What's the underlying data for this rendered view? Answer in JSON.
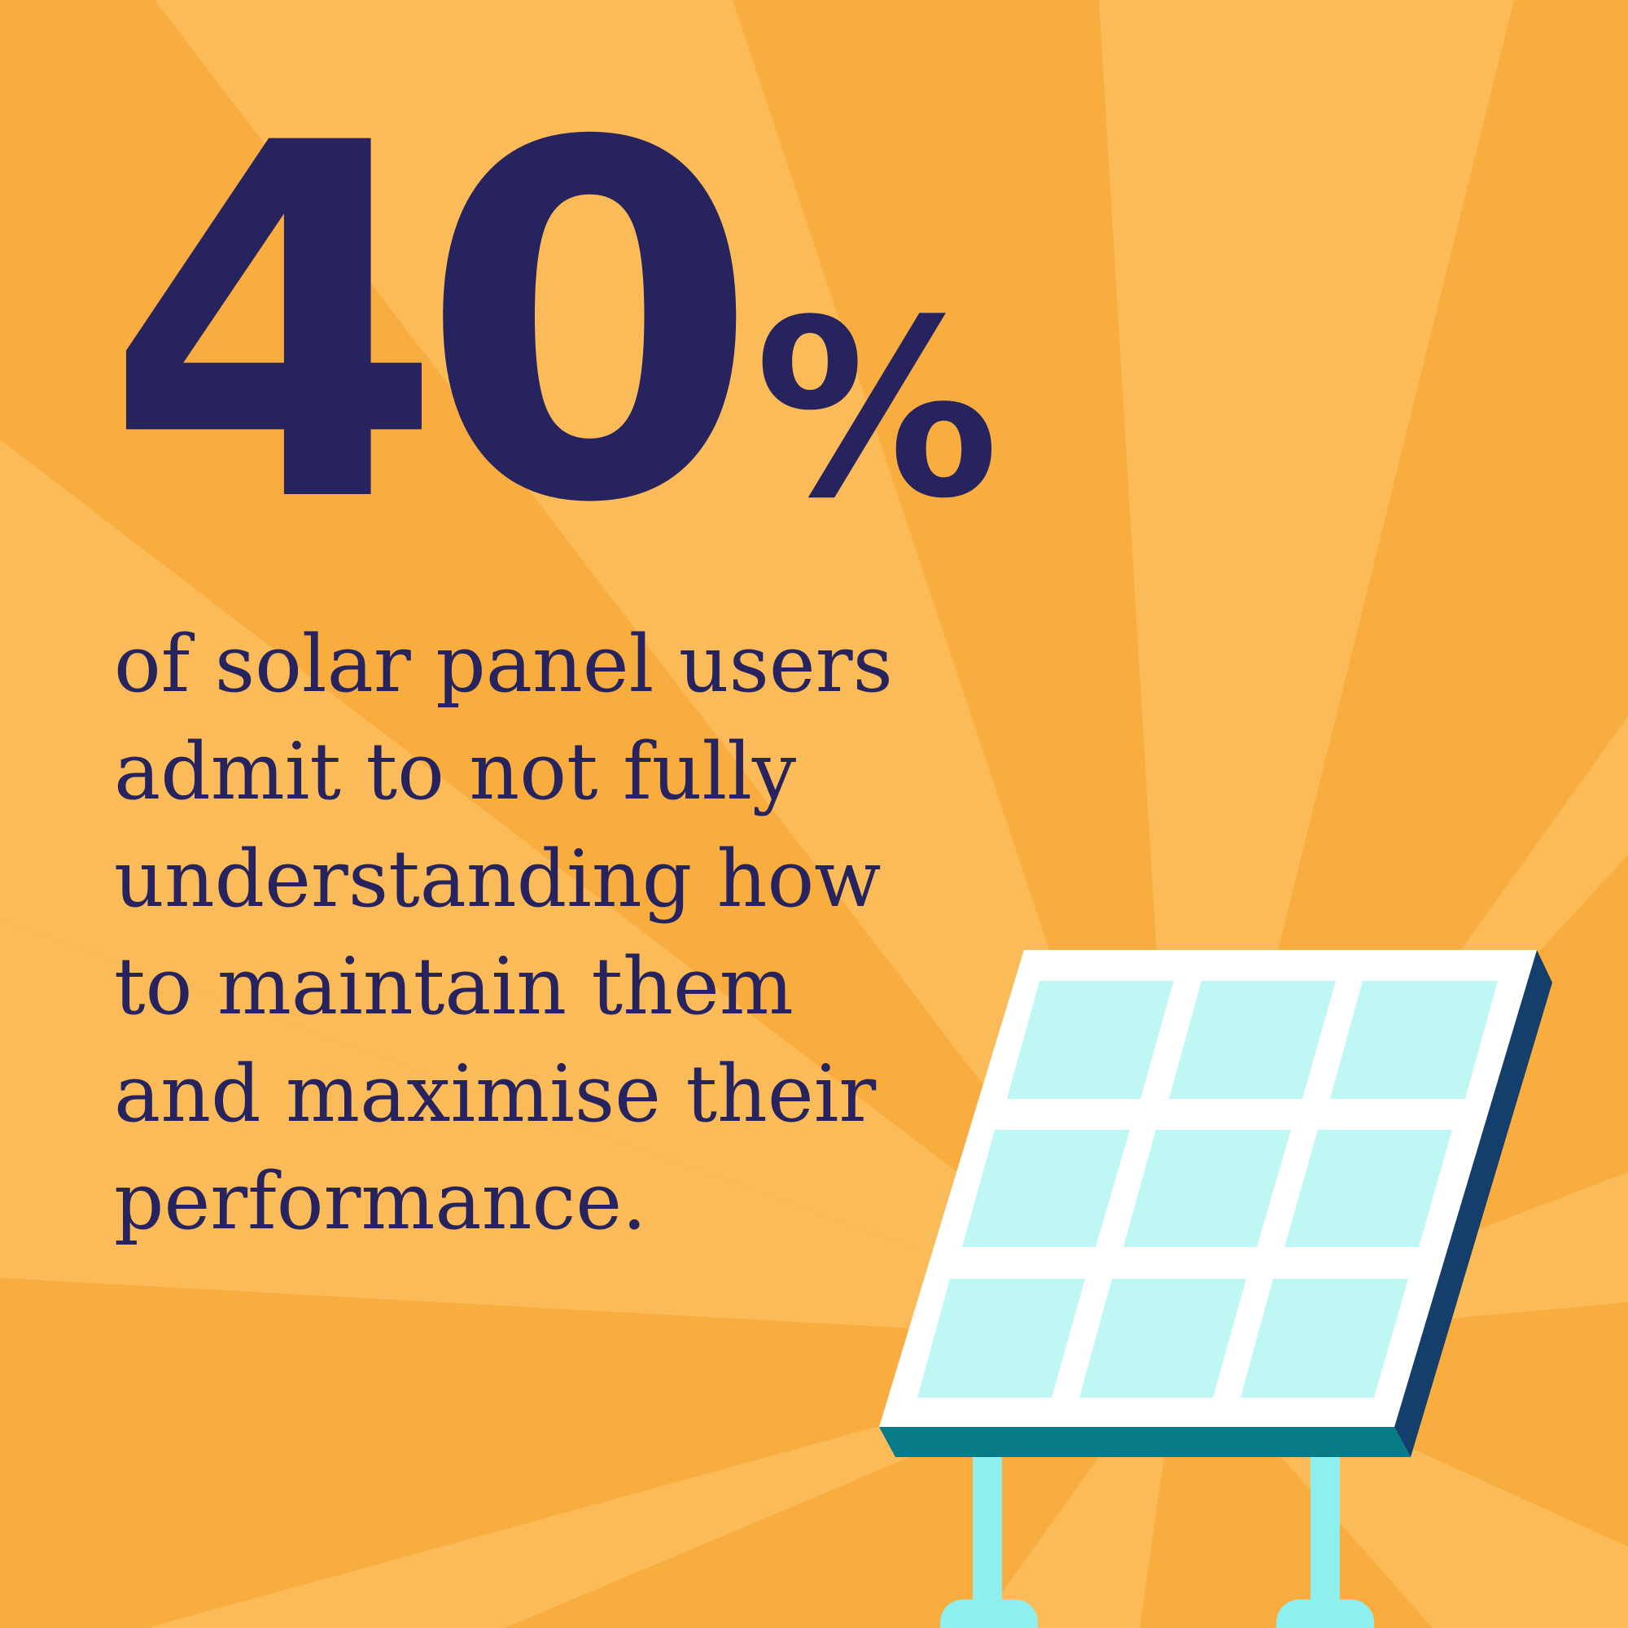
{
  "stat": {
    "number": "40",
    "unit": "%"
  },
  "caption": "of solar panel users\nadmit to not fully\nunderstanding how\nto maintain them\nand maximise their\nperformance.",
  "colors": {
    "background": "#f8ad3e",
    "ray": "#fbbb58",
    "text": "#27235e",
    "panel_frame": "#ffffff",
    "panel_cell": "#bff7f4",
    "panel_edge_side": "#143e6b",
    "panel_edge_bottom": "#077b86",
    "panel_legs": "#8ef0ee"
  },
  "illustration": {
    "name": "solar-panel-icon"
  }
}
